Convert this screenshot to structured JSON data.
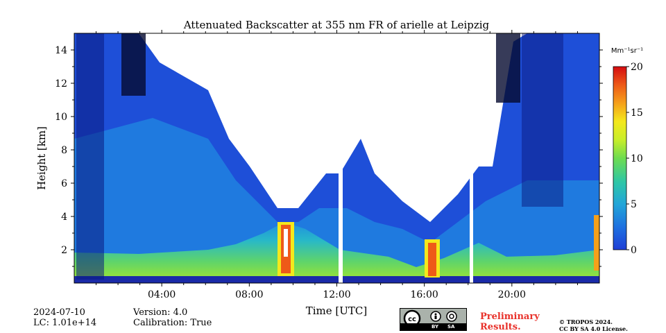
{
  "chart_data": {
    "type": "heatmap",
    "title": "Attenuated Backscatter at 355 nm FR of arielle at Leipzig",
    "xlabel": "Time [UTC]",
    "ylabel": "Height [km]",
    "x_range_hours": [
      0,
      24
    ],
    "y_range_km": [
      0,
      15
    ],
    "x_ticks": [
      {
        "value": 4,
        "label": "04:00"
      },
      {
        "value": 8,
        "label": "08:00"
      },
      {
        "value": 12,
        "label": "12:00"
      },
      {
        "value": 16,
        "label": "16:00"
      },
      {
        "value": 20,
        "label": "20:00"
      }
    ],
    "y_ticks": [
      {
        "value": 2,
        "label": "2"
      },
      {
        "value": 4,
        "label": "4"
      },
      {
        "value": 6,
        "label": "6"
      },
      {
        "value": 8,
        "label": "8"
      },
      {
        "value": 10,
        "label": "10"
      },
      {
        "value": 12,
        "label": "12"
      },
      {
        "value": 14,
        "label": "14"
      }
    ],
    "colorbar": {
      "label": "Mm⁻¹sr⁻¹",
      "range": [
        0,
        20
      ],
      "ticks": [
        0,
        5,
        10,
        15,
        20
      ],
      "colors": [
        "#1f3fd6",
        "#1e6fe0",
        "#22a6d8",
        "#2ec6a6",
        "#6edc50",
        "#c8ee2a",
        "#f4e81c",
        "#f5a01a",
        "#ee5a18",
        "#d40c10"
      ]
    },
    "features": {
      "boundary_layer_top_km": [
        [
          0,
          0.85
        ],
        [
          4,
          0.9
        ],
        [
          8,
          1.0
        ],
        [
          9.5,
          2.0
        ],
        [
          10.5,
          3.0
        ],
        [
          12,
          3.0
        ],
        [
          14,
          2.0
        ],
        [
          16,
          1.2
        ],
        [
          18,
          2.0
        ],
        [
          20,
          0.9
        ],
        [
          24,
          1.0
        ]
      ],
      "cloud_layers": [
        {
          "time_start": 9.5,
          "time_end": 10.0,
          "base_km": 1.5,
          "top_km": 3.5,
          "peak_value": 20
        },
        {
          "time_start": 16.2,
          "time_end": 16.7,
          "base_km": 1.0,
          "top_km": 2.5,
          "peak_value": 20
        },
        {
          "time_start": 23.8,
          "time_end": 24.0,
          "base_km": 1.5,
          "top_km": 4.0,
          "peak_value": 20
        }
      ],
      "no_data_columns_hours": [
        12.0,
        12.2,
        18.1,
        18.15
      ]
    },
    "left_info": [
      "2024-07-10",
      "LC: 1.01e+14"
    ],
    "mid_info": [
      "Version: 4.0",
      "Calibration: True"
    ]
  },
  "footer": {
    "license_badge": {
      "cc": "cc",
      "by": "BY",
      "sa": "SA"
    },
    "preliminary": [
      "Preliminary",
      "Results."
    ],
    "copyright": [
      "© TROPOS 2024.",
      "CC BY SA 4.0 License."
    ]
  }
}
